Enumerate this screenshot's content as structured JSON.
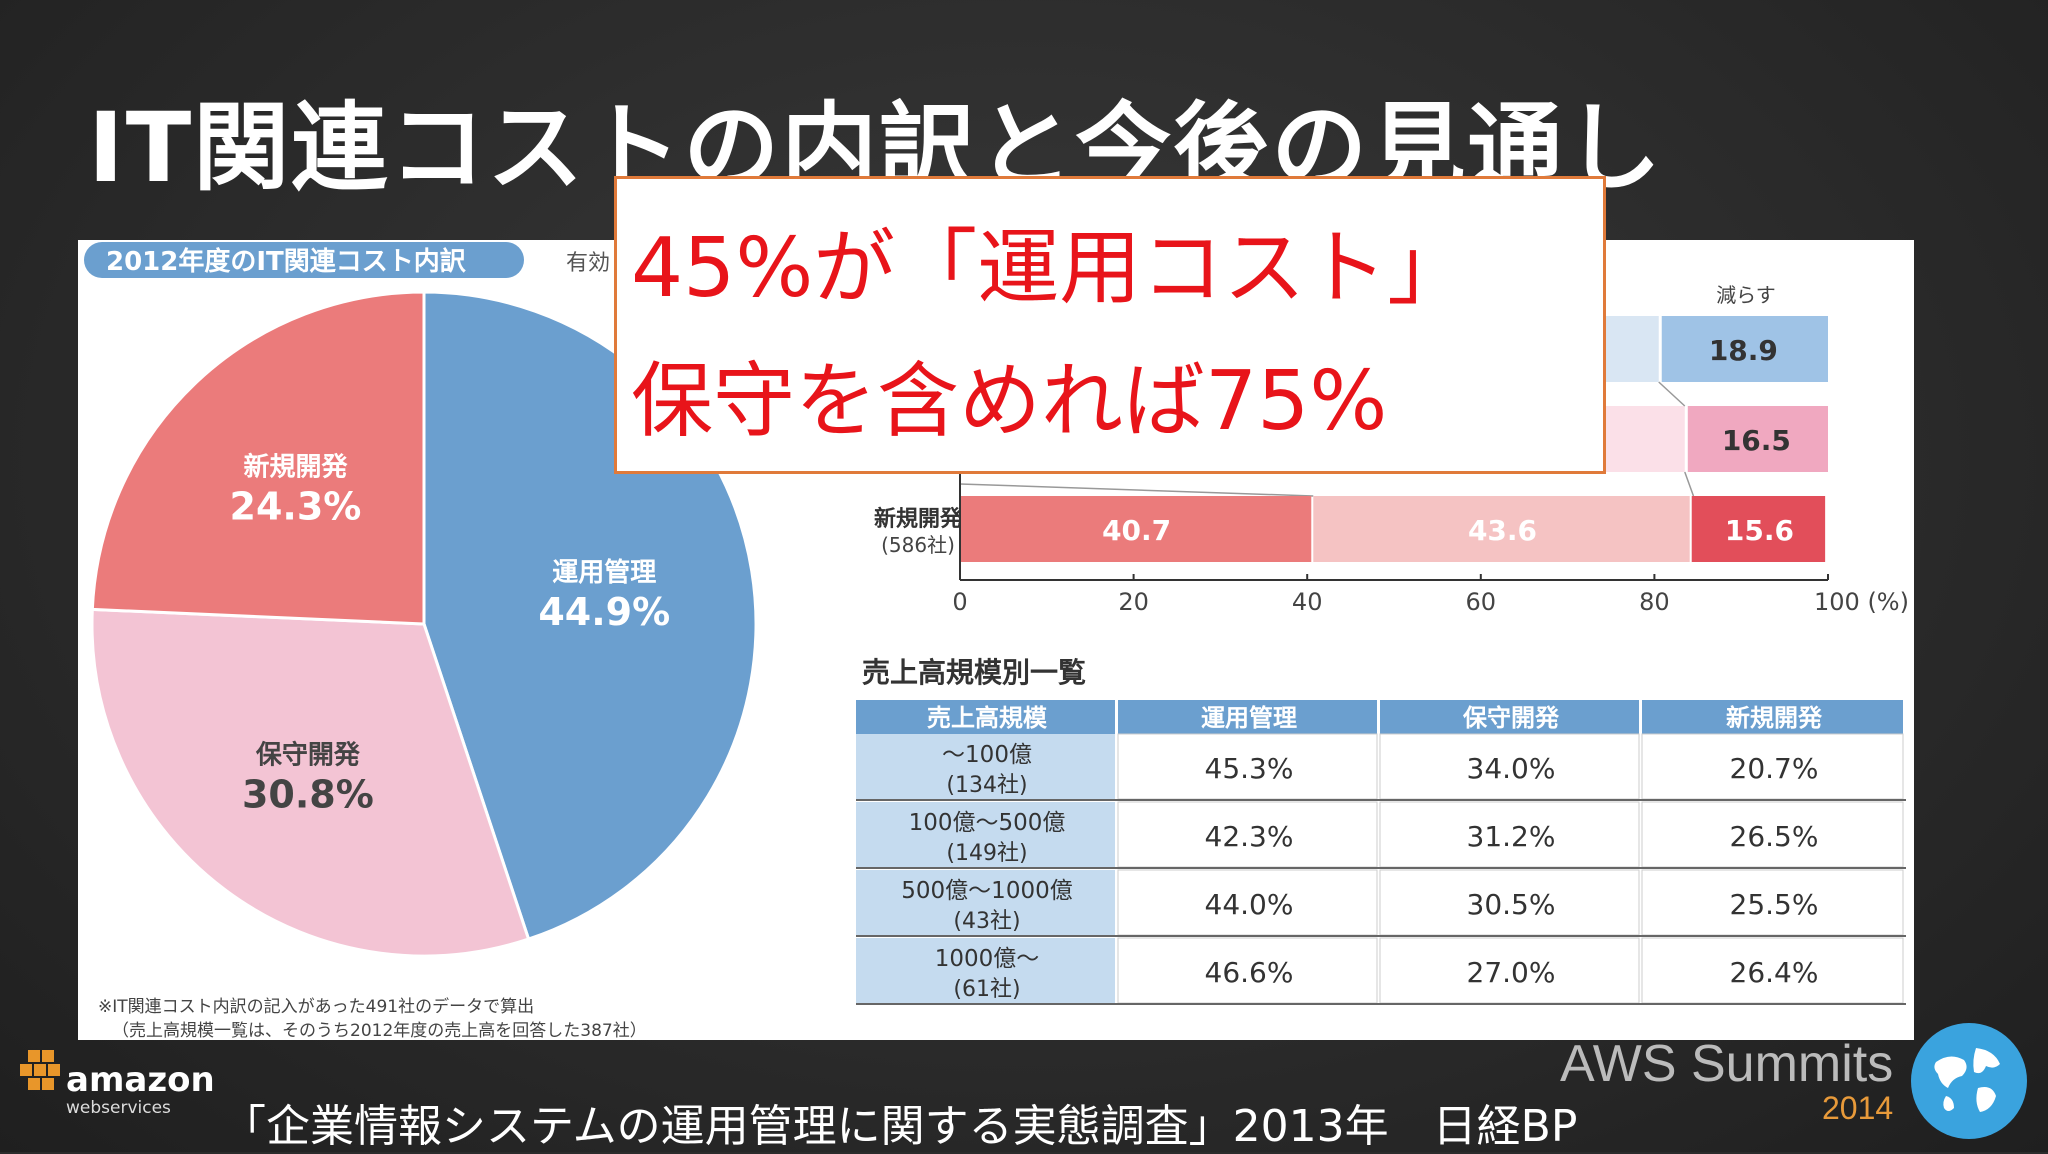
{
  "slide": {
    "title": "IT関連コストの内訳と今後の見通し",
    "callout_line1": "45%が「運用コスト」",
    "callout_line2": "保守を含めれば75%",
    "source": "「企業情報システムの運用管理に関する実態調査」2013年　日経BP",
    "aws_logo_text": "amazon",
    "aws_logo_sub": "webservices",
    "summits_text": "AWS Summits",
    "summits_year": "2014"
  },
  "chart_data": [
    {
      "type": "pie",
      "title": "2012年度のIT関連コスト内訳",
      "title_suffix": "有効",
      "slices": [
        {
          "label": "運用管理",
          "value": 44.9,
          "value_label": "44.9%",
          "color": "#6b9fcf"
        },
        {
          "label": "保守開発",
          "value": 30.8,
          "value_label": "30.8%",
          "color": "#f3c4d4"
        },
        {
          "label": "新規開発",
          "value": 24.3,
          "value_label": "24.3%",
          "color": "#eb7b7b"
        }
      ],
      "notes": [
        "※IT関連コスト内訳の記入があった491社のデータで算出",
        "（売上高規模一覧は、そのうち2012年度の売上高を回答した387社）"
      ]
    },
    {
      "type": "bar",
      "orientation": "horizontal",
      "stacked": true,
      "legend_visible": [
        "減らす"
      ],
      "categories": [
        {
          "label": "新規開発",
          "sub": "(586社)"
        }
      ],
      "series": [
        {
          "color": "#eb7b7b",
          "values": [
            40.7
          ]
        },
        {
          "color": "#f5c3c3",
          "values": [
            43.6
          ]
        },
        {
          "name": "減らす",
          "color": "#e24e5a",
          "values": [
            15.6
          ]
        }
      ],
      "partial_rows": [
        {
          "right_value": 18.9,
          "right_label": "18.9",
          "mid_end": 80.5,
          "mid_color": "#d9e6f3",
          "right_color": "#9fc3e6"
        },
        {
          "right_value": 16.5,
          "right_label": "16.5",
          "mid_end": 83.5,
          "mid_color": "#fbe0e8",
          "right_color": "#f0a8c0"
        }
      ],
      "xlim": [
        0,
        100
      ],
      "xticks": [
        "0",
        "20",
        "40",
        "60",
        "80",
        "100 (%)"
      ]
    },
    {
      "type": "table",
      "title": "売上高規模別一覧",
      "columns": [
        "売上高規模",
        "運用管理",
        "保守開発",
        "新規開発"
      ],
      "rows": [
        {
          "size": "～100億",
          "count": "(134社)",
          "cells": [
            "45.3%",
            "34.0%",
            "20.7%"
          ]
        },
        {
          "size": "100億～500億",
          "count": "(149社)",
          "cells": [
            "42.3%",
            "31.2%",
            "26.5%"
          ]
        },
        {
          "size": "500億～1000億",
          "count": "(43社)",
          "cells": [
            "44.0%",
            "30.5%",
            "25.5%"
          ]
        },
        {
          "size": "1000億～",
          "count": "(61社)",
          "cells": [
            "46.6%",
            "27.0%",
            "26.4%"
          ]
        }
      ]
    }
  ]
}
